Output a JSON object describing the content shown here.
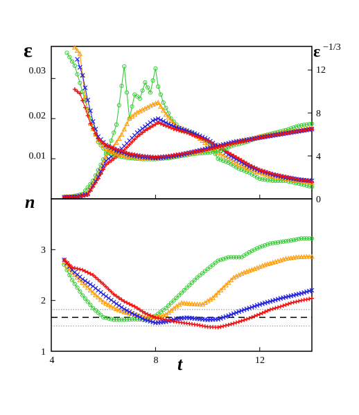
{
  "chart_data": [
    {
      "type": "scatter",
      "panel": "top",
      "ylabel_left": "ε",
      "ylabel_right": "ε",
      "ylabel_right_exponent": "−1/3",
      "xlim": [
        4,
        14
      ],
      "ylim_left": [
        0,
        0.038
      ],
      "ylim_right": [
        0,
        14.2
      ],
      "left_ticks": [
        "0.01",
        "0.02",
        "0.03"
      ],
      "left_tick_values": [
        0.01,
        0.02,
        0.03
      ],
      "right_ticks": [
        "0",
        "4",
        "8",
        "12"
      ],
      "right_tick_values": [
        0,
        4,
        8,
        12
      ],
      "series": [
        {
          "color": "#33cc33",
          "marker": "circle",
          "axis": "left",
          "x": [
            4.5,
            4.8,
            5.2,
            5.6,
            5.9,
            6.2,
            6.5,
            6.8,
            7.0,
            7.2,
            7.4,
            7.6,
            7.8,
            8.0,
            8.1,
            8.3,
            8.6,
            9.0,
            9.4,
            9.8,
            10.1,
            10.4,
            10.8,
            11.2,
            11.6,
            12.0,
            12.5,
            13.0,
            13.5,
            14.0
          ],
          "y": [
            0.0005,
            0.0006,
            0.0012,
            0.0045,
            0.0085,
            0.0125,
            0.0185,
            0.033,
            0.02,
            0.026,
            0.025,
            0.029,
            0.0265,
            0.0325,
            0.028,
            0.024,
            0.02,
            0.017,
            0.0165,
            0.015,
            0.0135,
            0.01,
            0.009,
            0.0075,
            0.0065,
            0.005,
            0.0045,
            0.0045,
            0.0038,
            0.003
          ]
        },
        {
          "color": "#ff9900",
          "marker": "triangle",
          "axis": "left",
          "x": [
            4.5,
            5.0,
            5.4,
            5.8,
            6.1,
            6.4,
            6.7,
            7.0,
            7.3,
            7.6,
            7.9,
            8.1,
            8.4,
            8.8,
            9.2,
            9.6,
            10.0,
            10.4,
            10.8,
            11.2,
            11.6,
            12.0,
            12.5,
            13.0,
            13.5,
            14.0
          ],
          "y": [
            0.0005,
            0.0006,
            0.0015,
            0.006,
            0.0105,
            0.013,
            0.016,
            0.02,
            0.0215,
            0.0225,
            0.0235,
            0.024,
            0.021,
            0.018,
            0.017,
            0.0155,
            0.0135,
            0.0115,
            0.01,
            0.0085,
            0.0075,
            0.0065,
            0.0055,
            0.005,
            0.0045,
            0.004
          ]
        },
        {
          "color": "#2222dd",
          "marker": "x",
          "axis": "left",
          "x": [
            4.5,
            5.0,
            5.4,
            5.8,
            6.1,
            6.4,
            6.7,
            7.0,
            7.3,
            7.6,
            7.9,
            8.1,
            8.4,
            8.8,
            9.2,
            9.6,
            10.0,
            10.4,
            10.8,
            11.2,
            11.6,
            12.0,
            12.5,
            13.0,
            13.5,
            14.0
          ],
          "y": [
            0.0004,
            0.0005,
            0.0012,
            0.0055,
            0.0095,
            0.011,
            0.0125,
            0.0145,
            0.0165,
            0.018,
            0.0195,
            0.02,
            0.019,
            0.0178,
            0.017,
            0.016,
            0.0148,
            0.013,
            0.011,
            0.0095,
            0.008,
            0.007,
            0.006,
            0.0053,
            0.0048,
            0.0045
          ]
        },
        {
          "color": "#ee1111",
          "marker": "plus",
          "axis": "left",
          "x": [
            4.5,
            5.0,
            5.4,
            5.8,
            6.1,
            6.4,
            6.7,
            7.0,
            7.3,
            7.6,
            7.9,
            8.1,
            8.4,
            8.8,
            9.2,
            9.6,
            10.0,
            10.4,
            10.8,
            11.2,
            11.6,
            12.0,
            12.5,
            13.0,
            13.5,
            14.0
          ],
          "y": [
            0.0004,
            0.0005,
            0.001,
            0.005,
            0.0085,
            0.01,
            0.0115,
            0.0135,
            0.0155,
            0.017,
            0.0182,
            0.019,
            0.0182,
            0.0172,
            0.0165,
            0.0155,
            0.0145,
            0.013,
            0.0115,
            0.01,
            0.0085,
            0.0072,
            0.0062,
            0.0055,
            0.0048,
            0.0043
          ]
        },
        {
          "color": "#33cc33",
          "marker": "circle",
          "axis": "right",
          "x": [
            4.6,
            4.9,
            5.2,
            5.5,
            5.8,
            6.1,
            6.5,
            7.0,
            7.5,
            8.0,
            8.5,
            9.0,
            9.5,
            10.0,
            10.5,
            11.0,
            11.5,
            12.0,
            12.5,
            13.0,
            13.5,
            14.0
          ],
          "y": [
            13.6,
            12.4,
            10.0,
            7.5,
            5.3,
            4.4,
            4.0,
            3.8,
            3.7,
            3.7,
            3.8,
            4.0,
            4.2,
            4.3,
            4.5,
            5.0,
            5.3,
            5.8,
            6.1,
            6.4,
            6.8,
            7.0
          ]
        },
        {
          "color": "#ff9900",
          "marker": "triangle",
          "axis": "right",
          "x": [
            4.9,
            5.1,
            5.3,
            5.5,
            5.8,
            6.1,
            6.5,
            7.0,
            7.5,
            8.0,
            8.5,
            9.0,
            9.5,
            10.0,
            10.5,
            11.0,
            11.5,
            12.0,
            12.5,
            13.0,
            13.5,
            14.0
          ],
          "y": [
            14.1,
            13.5,
            9.5,
            7.0,
            5.5,
            4.7,
            4.2,
            3.9,
            3.8,
            3.8,
            3.9,
            4.1,
            4.3,
            4.6,
            4.9,
            5.2,
            5.5,
            5.8,
            6.0,
            6.2,
            6.4,
            6.6
          ]
        },
        {
          "color": "#2222dd",
          "marker": "x",
          "axis": "right",
          "x": [
            5.0,
            5.2,
            5.4,
            5.6,
            5.8,
            6.1,
            6.5,
            7.0,
            7.5,
            8.0,
            8.5,
            9.0,
            9.5,
            10.0,
            10.5,
            11.0,
            11.5,
            12.0,
            12.5,
            13.0,
            13.5,
            14.0
          ],
          "y": [
            13.0,
            11.5,
            9.2,
            7.2,
            5.8,
            5.0,
            4.5,
            4.1,
            3.9,
            3.8,
            3.9,
            4.1,
            4.4,
            4.7,
            5.0,
            5.3,
            5.5,
            5.7,
            5.9,
            6.1,
            6.3,
            6.5
          ]
        },
        {
          "color": "#ee1111",
          "marker": "plus",
          "axis": "right",
          "x": [
            4.9,
            5.1,
            5.3,
            5.5,
            5.8,
            6.1,
            6.5,
            7.0,
            7.5,
            8.0,
            8.5,
            9.0,
            9.5,
            10.0,
            10.5,
            11.0,
            11.5,
            12.0,
            12.5,
            13.0,
            13.5,
            14.0
          ],
          "y": [
            10.2,
            9.8,
            8.5,
            7.0,
            5.6,
            5.0,
            4.6,
            4.2,
            4.0,
            3.9,
            4.0,
            4.2,
            4.4,
            4.6,
            4.9,
            5.2,
            5.4,
            5.7,
            5.9,
            6.1,
            6.3,
            6.5
          ]
        }
      ]
    },
    {
      "type": "scatter",
      "panel": "bottom",
      "ylabel": "n",
      "xlabel": "t",
      "xlim": [
        4,
        14
      ],
      "ylim": [
        1,
        4
      ],
      "x_ticks": [
        "4",
        "8",
        "12"
      ],
      "x_tick_values": [
        4,
        8,
        12
      ],
      "y_ticks": [
        "1",
        "2",
        "3"
      ],
      "y_tick_values": [
        1,
        2,
        3
      ],
      "reference_lines": [
        {
          "y": 1.667,
          "style": "dashed"
        },
        {
          "y": 1.82,
          "style": "dotted"
        },
        {
          "y": 1.5,
          "style": "dotted"
        }
      ],
      "series": [
        {
          "color": "#33cc33",
          "marker": "circle",
          "x": [
            4.5,
            4.8,
            5.2,
            5.6,
            6.0,
            6.4,
            6.8,
            7.2,
            7.6,
            8.0,
            8.4,
            8.8,
            9.2,
            9.6,
            10.0,
            10.4,
            10.8,
            11.0,
            11.3,
            11.6,
            12.0,
            12.4,
            12.8,
            13.2,
            13.6,
            14.0
          ],
          "y": [
            2.7,
            2.4,
            2.1,
            1.85,
            1.67,
            1.62,
            1.62,
            1.63,
            1.62,
            1.7,
            1.85,
            2.05,
            2.25,
            2.45,
            2.62,
            2.78,
            2.85,
            2.85,
            2.85,
            2.95,
            3.05,
            3.12,
            3.15,
            3.18,
            3.22,
            3.22
          ]
        },
        {
          "color": "#ff9900",
          "marker": "triangle",
          "x": [
            4.5,
            4.8,
            5.2,
            5.6,
            6.0,
            6.4,
            6.8,
            7.2,
            7.6,
            8.0,
            8.4,
            8.8,
            9.0,
            9.4,
            9.8,
            10.2,
            10.6,
            11.0,
            11.4,
            11.8,
            12.2,
            12.6,
            13.0,
            13.4,
            13.8,
            14.0
          ],
          "y": [
            2.75,
            2.55,
            2.35,
            2.15,
            1.97,
            1.85,
            1.77,
            1.72,
            1.67,
            1.67,
            1.72,
            1.88,
            1.95,
            1.93,
            1.92,
            2.05,
            2.25,
            2.45,
            2.55,
            2.62,
            2.7,
            2.76,
            2.82,
            2.85,
            2.86,
            2.86
          ]
        },
        {
          "color": "#2222dd",
          "marker": "x",
          "x": [
            4.5,
            4.8,
            5.2,
            5.6,
            6.0,
            6.4,
            6.8,
            7.2,
            7.6,
            8.0,
            8.4,
            8.8,
            9.2,
            9.6,
            10.0,
            10.4,
            10.8,
            11.2,
            11.6,
            12.0,
            12.4,
            12.8,
            13.2,
            13.6,
            14.0
          ],
          "y": [
            2.8,
            2.6,
            2.42,
            2.28,
            2.12,
            1.97,
            1.83,
            1.72,
            1.62,
            1.56,
            1.58,
            1.64,
            1.66,
            1.64,
            1.62,
            1.63,
            1.7,
            1.78,
            1.85,
            1.92,
            1.98,
            2.04,
            2.09,
            2.14,
            2.2
          ]
        },
        {
          "color": "#ee1111",
          "marker": "plus",
          "x": [
            4.5,
            4.8,
            5.2,
            5.6,
            6.0,
            6.4,
            6.8,
            7.2,
            7.6,
            8.0,
            8.4,
            8.8,
            9.2,
            9.6,
            10.0,
            10.4,
            10.8,
            11.2,
            11.6,
            12.0,
            12.4,
            12.8,
            13.2,
            13.6,
            14.0
          ],
          "y": [
            2.8,
            2.65,
            2.6,
            2.5,
            2.32,
            2.12,
            1.98,
            1.88,
            1.75,
            1.66,
            1.62,
            1.58,
            1.55,
            1.52,
            1.48,
            1.47,
            1.52,
            1.58,
            1.65,
            1.73,
            1.82,
            1.88,
            1.95,
            2.0,
            2.04
          ]
        }
      ]
    }
  ]
}
